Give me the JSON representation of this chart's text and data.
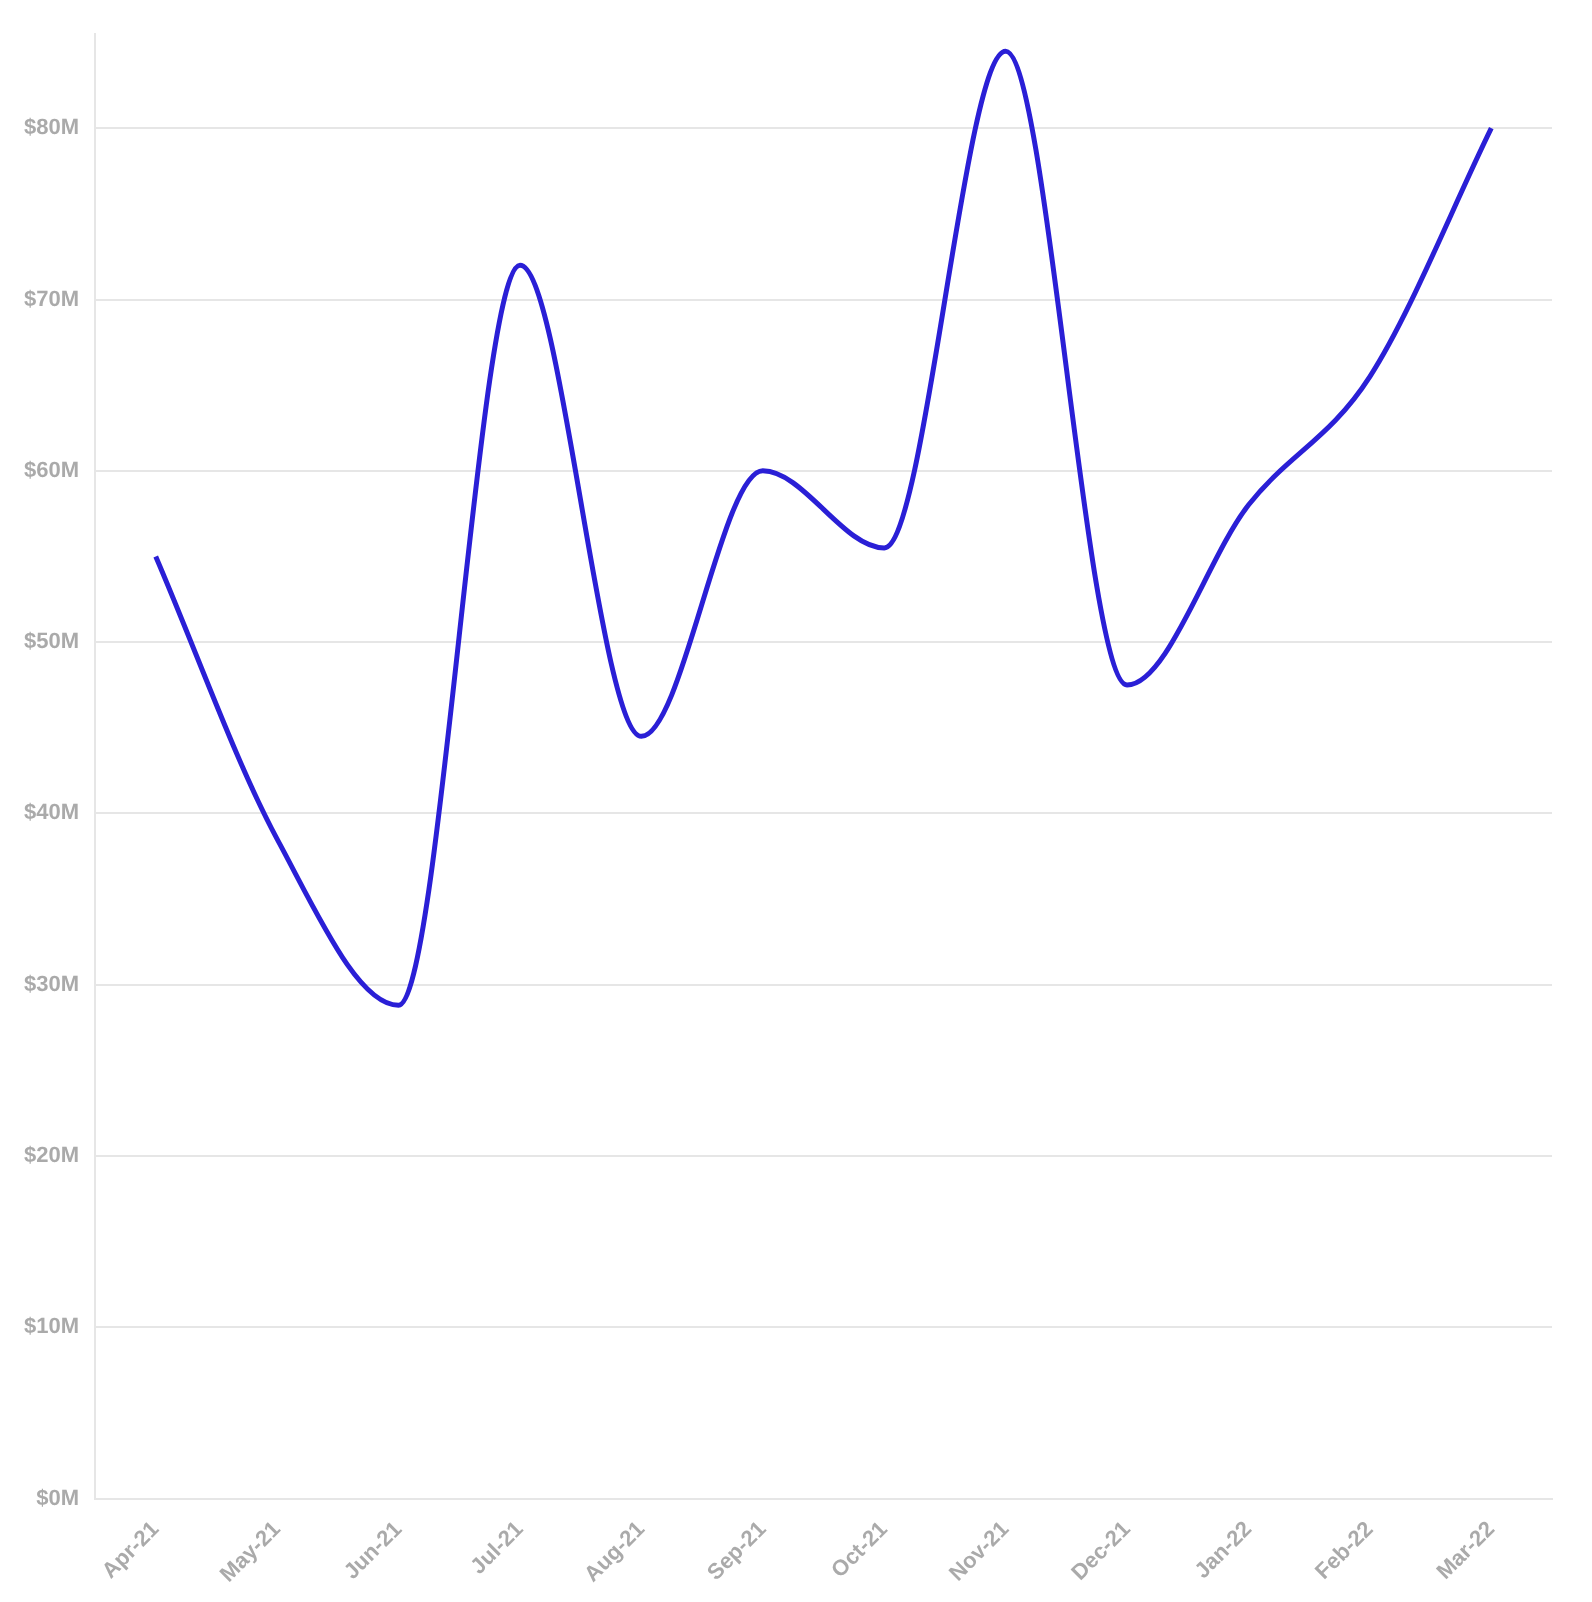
{
  "chart_data": {
    "type": "line",
    "categories": [
      "Apr-21",
      "May-21",
      "Jun-21",
      "Jul-21",
      "Aug-21",
      "Sep-21",
      "Oct-21",
      "Nov-21",
      "Dec-21",
      "Jan-22",
      "Feb-22",
      "Mar-22"
    ],
    "series": [
      {
        "color": "#2a1fd6",
        "values": [
          55,
          38.5,
          28.8,
          72,
          44.5,
          60,
          55.5,
          84.5,
          47.5,
          58,
          65.5,
          80
        ]
      }
    ],
    "ylim": [
      0,
      85.5
    ],
    "yticks": [
      {
        "value": 0,
        "label": "$0M"
      },
      {
        "value": 10,
        "label": "$10M"
      },
      {
        "value": 20,
        "label": "$20M"
      },
      {
        "value": 30,
        "label": "$30M"
      },
      {
        "value": 40,
        "label": "$40M"
      },
      {
        "value": 50,
        "label": "$50M"
      },
      {
        "value": 60,
        "label": "$60M"
      },
      {
        "value": 70,
        "label": "$70M"
      },
      {
        "value": 80,
        "label": "$80M"
      }
    ],
    "grid": "y",
    "legend": false,
    "marker": "none",
    "line_style": "solid"
  }
}
